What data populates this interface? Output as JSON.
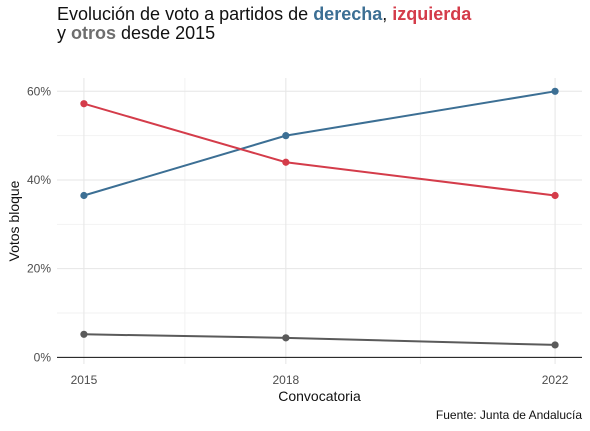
{
  "title": {
    "line1_prefix": "Evolución  de voto  a partidos de",
    "kw_right": "derecha",
    "comma": ",",
    "kw_left": "izquierda",
    "line2_prefix": "y",
    "kw_other": "otros",
    "line2_suffix": "desde 2015"
  },
  "caption": "Fuente: Junta de Andalucía",
  "colors": {
    "right": "#3c6f94",
    "left": "#d43c4a",
    "other": "#5a5a5a"
  },
  "chart_data": {
    "type": "line",
    "x": [
      2015,
      2018,
      2022
    ],
    "xlim": [
      2014.6,
      2022.4
    ],
    "ylim": [
      -0.015,
      0.63
    ],
    "x_ticks": [
      "2015",
      "2018",
      "2022"
    ],
    "y_ticks": [
      {
        "value": 0.0,
        "label": "0%"
      },
      {
        "value": 0.2,
        "label": "20%"
      },
      {
        "value": 0.4,
        "label": "40%"
      },
      {
        "value": 0.6,
        "label": "60%"
      }
    ],
    "xlabel": "Convocatoria",
    "ylabel": "Votos bloque",
    "series": [
      {
        "name": "derecha",
        "values": [
          0.365,
          0.5,
          0.6
        ],
        "color": "#3c6f94"
      },
      {
        "name": "izquierda",
        "values": [
          0.572,
          0.44,
          0.365
        ],
        "color": "#d43c4a"
      },
      {
        "name": "otros",
        "values": [
          0.052,
          0.044,
          0.028
        ],
        "color": "#5a5a5a"
      }
    ]
  }
}
